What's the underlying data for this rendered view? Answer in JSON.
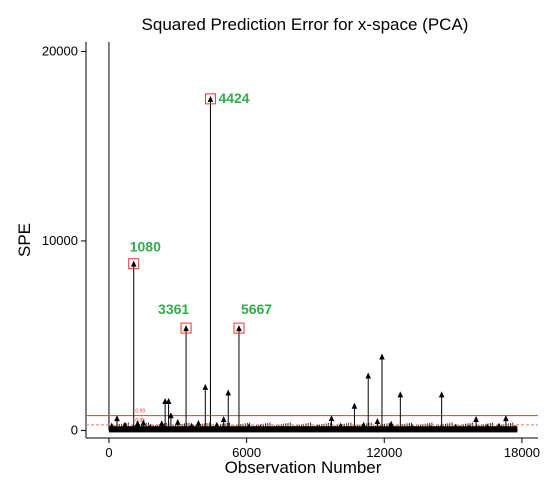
{
  "chart_data": {
    "type": "scatter",
    "title": "Squared Prediction Error for x-space (PCA)",
    "xlabel": "Observation Number",
    "ylabel": "SPE",
    "xlim": [
      -1000,
      18700
    ],
    "ylim": [
      -400,
      20500
    ],
    "xticks": [
      0,
      6000,
      12000,
      18000
    ],
    "yticks": [
      0,
      10000,
      20000
    ],
    "grid": false,
    "colors": {
      "stems": "#000000",
      "limit_upper": "#e53935",
      "limit_lower": "#e57373",
      "highlight_box": "#e53935",
      "annotation": "#2fae4a"
    },
    "limits": [
      {
        "label": "0.99",
        "value": 780,
        "style": "solid"
      },
      {
        "label": "0.95",
        "value": 290,
        "style": "dashed"
      }
    ],
    "tall_line": {
      "x": 0,
      "y": 20500
    },
    "annotations": [
      {
        "text": "4424",
        "x": 4424,
        "y": 17500
      },
      {
        "text": "1080",
        "x": 1080,
        "y": 8800
      },
      {
        "text": "3361",
        "x": 3361,
        "y": 5400
      },
      {
        "text": "5667",
        "x": 5667,
        "y": 5400
      }
    ],
    "points": [
      {
        "x": 120,
        "y": 250
      },
      {
        "x": 350,
        "y": 650
      },
      {
        "x": 700,
        "y": 300
      },
      {
        "x": 1080,
        "y": 8800
      },
      {
        "x": 1250,
        "y": 380
      },
      {
        "x": 1500,
        "y": 420
      },
      {
        "x": 1800,
        "y": 200
      },
      {
        "x": 2300,
        "y": 380
      },
      {
        "x": 2450,
        "y": 1550
      },
      {
        "x": 2600,
        "y": 1550
      },
      {
        "x": 2700,
        "y": 800
      },
      {
        "x": 3000,
        "y": 450
      },
      {
        "x": 3361,
        "y": 5400
      },
      {
        "x": 3600,
        "y": 250
      },
      {
        "x": 3900,
        "y": 400
      },
      {
        "x": 4200,
        "y": 2300
      },
      {
        "x": 4424,
        "y": 17500
      },
      {
        "x": 4700,
        "y": 300
      },
      {
        "x": 5000,
        "y": 600
      },
      {
        "x": 5200,
        "y": 2000
      },
      {
        "x": 5667,
        "y": 5400
      },
      {
        "x": 6100,
        "y": 200
      },
      {
        "x": 6600,
        "y": 150
      },
      {
        "x": 7500,
        "y": 100
      },
      {
        "x": 8300,
        "y": 120
      },
      {
        "x": 9100,
        "y": 150
      },
      {
        "x": 9700,
        "y": 650
      },
      {
        "x": 10100,
        "y": 250
      },
      {
        "x": 10700,
        "y": 1300
      },
      {
        "x": 11100,
        "y": 300
      },
      {
        "x": 11300,
        "y": 2900
      },
      {
        "x": 11700,
        "y": 500
      },
      {
        "x": 11900,
        "y": 3900
      },
      {
        "x": 12300,
        "y": 350
      },
      {
        "x": 12700,
        "y": 1900
      },
      {
        "x": 13200,
        "y": 200
      },
      {
        "x": 14000,
        "y": 150
      },
      {
        "x": 14500,
        "y": 1900
      },
      {
        "x": 15100,
        "y": 200
      },
      {
        "x": 15700,
        "y": 150
      },
      {
        "x": 16000,
        "y": 600
      },
      {
        "x": 16500,
        "y": 200
      },
      {
        "x": 17000,
        "y": 250
      },
      {
        "x": 17300,
        "y": 650
      },
      {
        "x": 17700,
        "y": 150
      }
    ]
  }
}
